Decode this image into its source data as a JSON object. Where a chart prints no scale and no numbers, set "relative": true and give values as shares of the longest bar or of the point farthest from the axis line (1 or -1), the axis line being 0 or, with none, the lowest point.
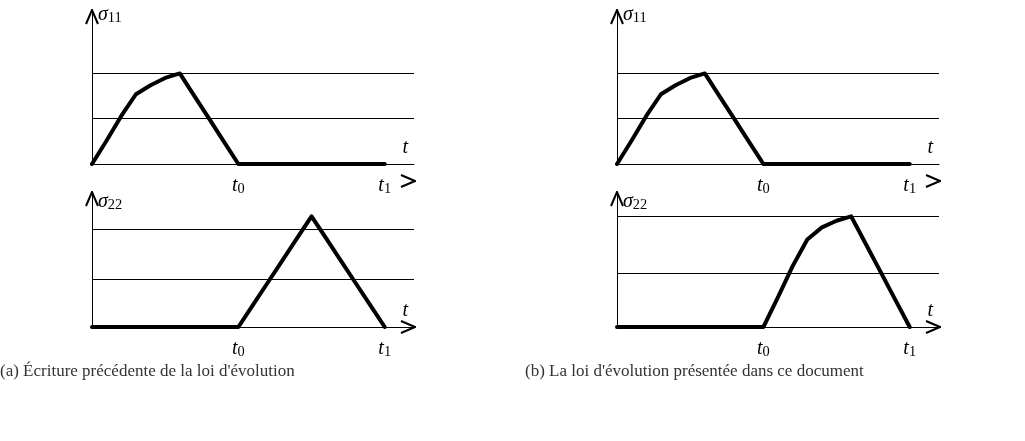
{
  "chart_data": [
    {
      "type": "line",
      "relative": true,
      "xlabel": "t",
      "ylabel": "σ$_{11}$",
      "marker": "none",
      "line_style": "solid",
      "grid": false,
      "tick_labels": "x",
      "categories": [
        null,
        null,
        null,
        null,
        null,
        null,
        null,
        null,
        null,
        null,
        "t$_{0}$",
        null,
        null,
        null,
        null,
        null,
        null,
        null,
        null,
        null,
        "t$_{1}$",
        null,
        null
      ],
      "series": [
        {
          "color": "#000000",
          "values": [
            0,
            0.26,
            0.53,
            0.77,
            0.87,
            0.95,
            1,
            0.75,
            0.5,
            0.25,
            0,
            0,
            0,
            0,
            0,
            0,
            0,
            0,
            0,
            0,
            0,
            null,
            null
          ]
        }
      ],
      "ref_lines": [
        {
          "axis": "y",
          "value": 1
        },
        {
          "axis": "y",
          "value": 0.5
        }
      ]
    },
    {
      "type": "line",
      "relative": true,
      "xlabel": "t",
      "ylabel": "σ$_{11}$",
      "marker": "none",
      "line_style": "solid",
      "grid": false,
      "tick_labels": "x",
      "categories": [
        null,
        null,
        null,
        null,
        null,
        null,
        null,
        null,
        null,
        null,
        "t$_{0}$",
        null,
        null,
        null,
        null,
        null,
        null,
        null,
        null,
        null,
        "t$_{1}$",
        null,
        null
      ],
      "series": [
        {
          "color": "#000000",
          "values": [
            0,
            0.26,
            0.53,
            0.77,
            0.87,
            0.95,
            1,
            0.75,
            0.5,
            0.25,
            0,
            0,
            0,
            0,
            0,
            0,
            0,
            0,
            0,
            0,
            0,
            null,
            null
          ]
        }
      ],
      "ref_lines": [
        {
          "axis": "y",
          "value": 1
        },
        {
          "axis": "y",
          "value": 0.5
        }
      ]
    },
    {
      "type": "line",
      "relative": true,
      "xlabel": "t",
      "ylabel": "σ$_{22}$",
      "marker": "none",
      "line_style": "solid",
      "grid": false,
      "tick_labels": "x",
      "categories": [
        null,
        null,
        null,
        null,
        null,
        null,
        null,
        null,
        null,
        null,
        "t$_{0}$",
        null,
        null,
        null,
        null,
        null,
        null,
        null,
        null,
        null,
        "t$_{1}$",
        null,
        null
      ],
      "series": [
        {
          "color": "#000000",
          "values": [
            0,
            0,
            0,
            0,
            0,
            0,
            0,
            0,
            0,
            0,
            0,
            0.2,
            0.4,
            0.6,
            0.8,
            1,
            0.8,
            0.6,
            0.4,
            0.2,
            0,
            null,
            null
          ]
        }
      ],
      "ref_lines": [
        {
          "axis": "y",
          "value": 0.875
        },
        {
          "axis": "y",
          "value": 0.43
        }
      ],
      "annotations": [
        "(a) Écriture précédente de la loi d'évolution"
      ]
    },
    {
      "type": "line",
      "relative": true,
      "xlabel": "t",
      "ylabel": "σ$_{22}$",
      "marker": "none",
      "line_style": "solid",
      "grid": false,
      "tick_labels": "x",
      "categories": [
        null,
        null,
        null,
        null,
        null,
        null,
        null,
        null,
        null,
        null,
        "t$_{0}$",
        null,
        null,
        null,
        null,
        null,
        null,
        null,
        null,
        null,
        "t$_{1}$",
        null,
        null
      ],
      "series": [
        {
          "color": "#000000",
          "values": [
            0,
            0,
            0,
            0,
            0,
            0,
            0,
            0,
            0,
            0,
            0,
            0.27,
            0.55,
            0.79,
            0.9,
            0.96,
            1,
            0.75,
            0.5,
            0.25,
            0,
            null,
            null
          ]
        }
      ],
      "ref_lines": [
        {
          "axis": "y",
          "value": 1
        },
        {
          "axis": "y",
          "value": 0.49
        }
      ],
      "annotations": [
        "(b) La loi d'évolution présentée dans ce document"
      ]
    }
  ]
}
